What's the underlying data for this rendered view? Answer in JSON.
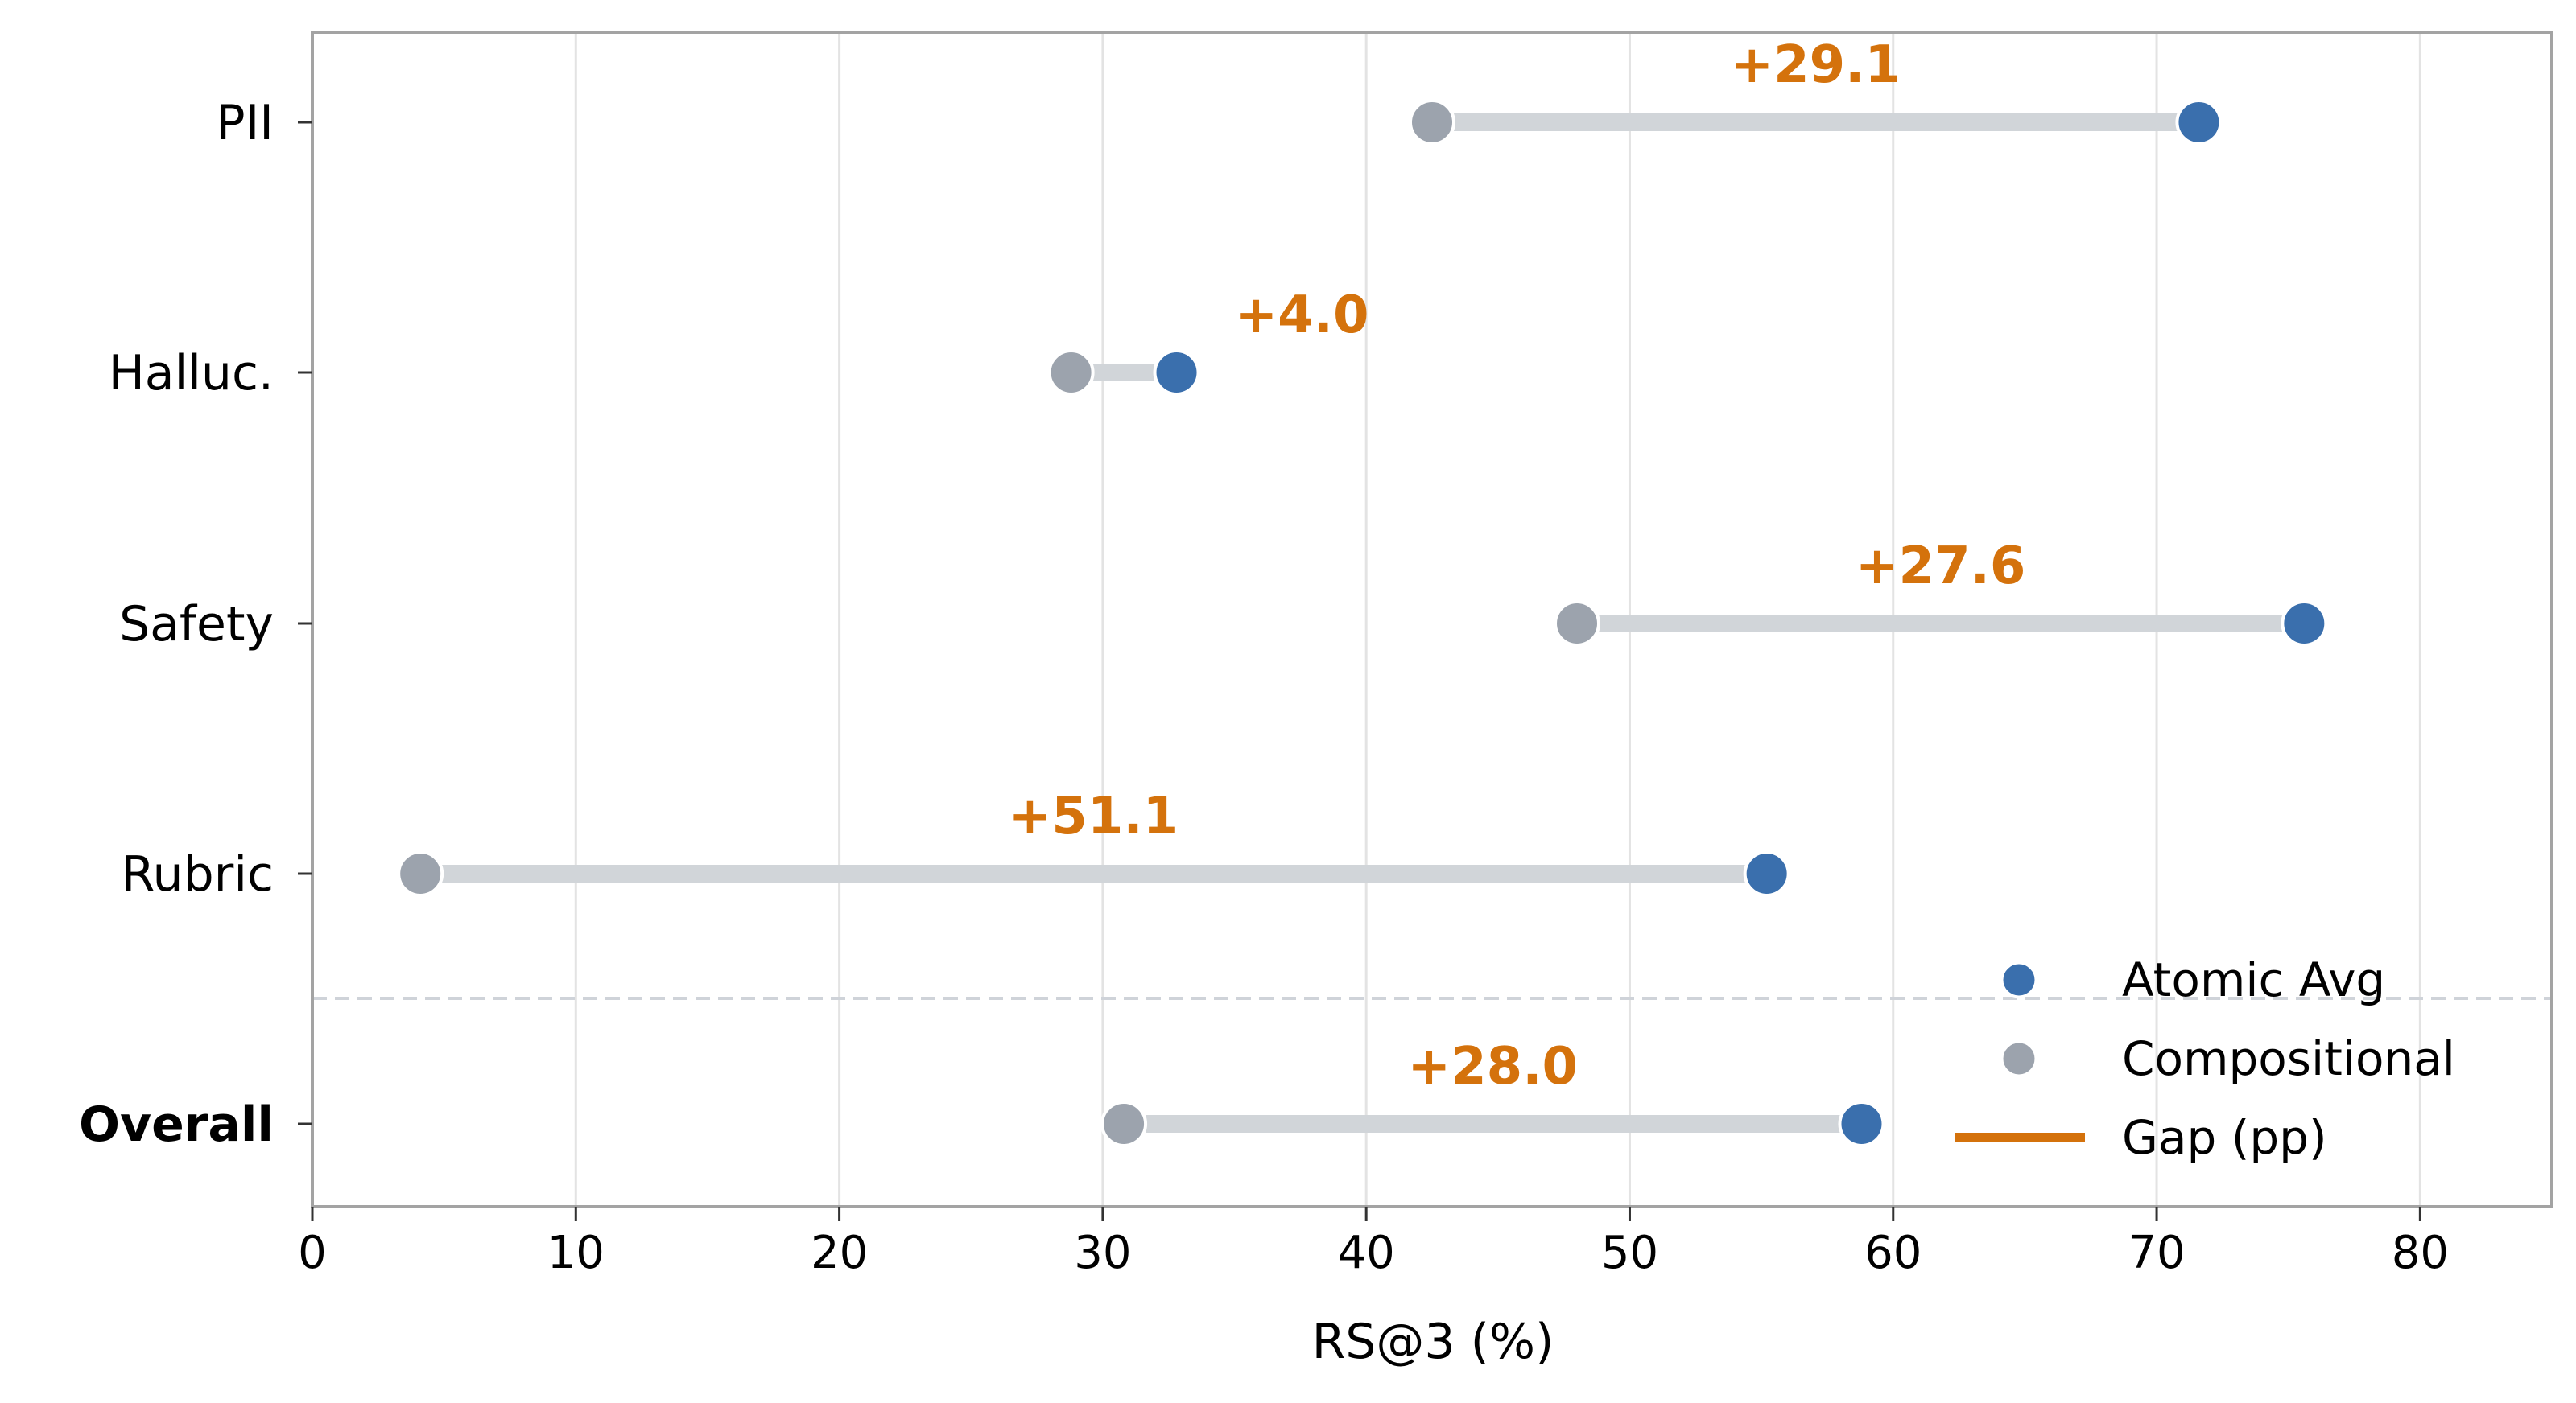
{
  "chart_data": {
    "type": "dumbbell",
    "xlabel": "RS@3 (%)",
    "xlim": [
      0,
      85
    ],
    "xticks": [
      0,
      10,
      20,
      30,
      40,
      50,
      60,
      70,
      80
    ],
    "grid": "vertical",
    "categories": [
      "PII",
      "Halluc.",
      "Safety",
      "Rubric",
      "Overall"
    ],
    "bold_categories": [
      "Overall"
    ],
    "separator_before": "Overall",
    "series": [
      {
        "name": "Atomic Avg",
        "color": "#3a6fad",
        "values": [
          71.6,
          32.8,
          75.6,
          55.2,
          58.8
        ]
      },
      {
        "name": "Compositional",
        "color": "#9ca3ad",
        "values": [
          42.5,
          28.8,
          48.0,
          4.1,
          30.8
        ]
      }
    ],
    "gap": {
      "name": "Gap (pp)",
      "color": "#d4720c",
      "labels": [
        "+29.1",
        "+4.0",
        "+27.6",
        "+51.1",
        "+28.0"
      ]
    },
    "connector_color": "#d1d5d9",
    "legend_position": "lower-right"
  }
}
